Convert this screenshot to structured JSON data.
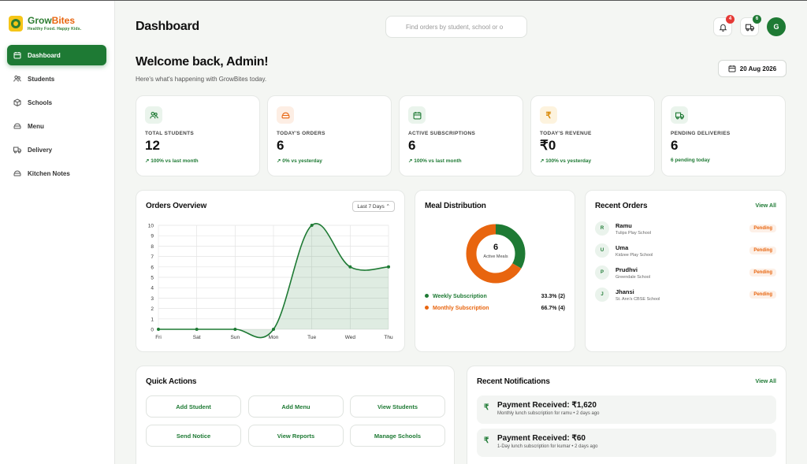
{
  "brand": {
    "name_part1": "Grow",
    "name_part2": "Bites",
    "tagline": "Healthy Food. Happy Kids."
  },
  "sidebar": {
    "items": [
      {
        "label": "Dashboard",
        "icon": "calendar-icon",
        "active": true
      },
      {
        "label": "Students",
        "icon": "users-icon"
      },
      {
        "label": "Schools",
        "icon": "box-icon"
      },
      {
        "label": "Menu",
        "icon": "menu-icon"
      },
      {
        "label": "Delivery",
        "icon": "truck-icon"
      },
      {
        "label": "Kitchen Notes",
        "icon": "notes-icon"
      }
    ]
  },
  "header": {
    "title": "Dashboard",
    "search_placeholder": "Find orders by student, school or o",
    "notifications_count": "4",
    "deliveries_count": "6",
    "avatar_initial": "G"
  },
  "welcome": {
    "title": "Welcome back, Admin!",
    "subtitle": "Here's what's happening with GrowBites today.",
    "date": "20 Aug 2026"
  },
  "stats": [
    {
      "label": "TOTAL STUDENTS",
      "value": "12",
      "trend": "↗ 100% vs last month",
      "icon": "users-icon",
      "bg": "#eaf4ec",
      "color": "#1e7a34"
    },
    {
      "label": "TODAY'S ORDERS",
      "value": "6",
      "trend": "↗ 0% vs yesterday",
      "icon": "menu-icon",
      "bg": "#fdeee4",
      "color": "#e8650f"
    },
    {
      "label": "ACTIVE SUBSCRIPTIONS",
      "value": "6",
      "trend": "↗ 100% vs last month",
      "icon": "calendar-icon",
      "bg": "#eaf4ec",
      "color": "#1e7a34"
    },
    {
      "label": "TODAY'S REVENUE",
      "value": "₹0",
      "trend": "↗ 100% vs yesterday",
      "icon": "rupee-icon",
      "bg": "#fdf3de",
      "color": "#d98a08"
    },
    {
      "label": "PENDING DELIVERIES",
      "value": "6",
      "trend": "6 pending today",
      "icon": "truck-icon",
      "bg": "#eaf4ec",
      "color": "#1e7a34"
    }
  ],
  "orders_overview": {
    "title": "Orders Overview",
    "range": "Last 7 Days"
  },
  "chart_data": {
    "type": "area",
    "title": "Orders Overview",
    "categories": [
      "Fri",
      "Sat",
      "Sun",
      "Mon",
      "Tue",
      "Wed",
      "Thu"
    ],
    "values": [
      0,
      0,
      0,
      0,
      10,
      6,
      6
    ],
    "ylim": [
      0,
      10
    ],
    "yticks": [
      0,
      1,
      2,
      3,
      4,
      5,
      6,
      7,
      8,
      9,
      10
    ],
    "grid": true,
    "color": "#1e7a34"
  },
  "meal_distribution": {
    "title": "Meal Distribution",
    "center_value": "6",
    "center_label": "Active Meals",
    "items": [
      {
        "name": "Weekly Subscription",
        "value": "33.3% (2)",
        "color": "#1e7a34",
        "fraction": 0.333
      },
      {
        "name": "Monthly Subscription",
        "value": "66.7% (4)",
        "color": "#e8650f",
        "fraction": 0.667
      }
    ]
  },
  "recent_orders": {
    "title": "Recent Orders",
    "view_all": "View All",
    "items": [
      {
        "initial": "R",
        "name": "Ramu",
        "school": "Tulips Play School",
        "status": "Pending"
      },
      {
        "initial": "U",
        "name": "Uma",
        "school": "Kidzee Play School",
        "status": "Pending"
      },
      {
        "initial": "P",
        "name": "Prudhvi",
        "school": "Greendale School",
        "status": "Pending"
      },
      {
        "initial": "J",
        "name": "Jhansi",
        "school": "St. Ann's CBSE School",
        "status": "Pending"
      }
    ]
  },
  "quick_actions": {
    "title": "Quick Actions",
    "buttons": [
      "Add Student",
      "Add Menu",
      "View Students",
      "Send Notice",
      "View Reports",
      "Manage Schools"
    ]
  },
  "notifications": {
    "title": "Recent Notifications",
    "view_all": "View All",
    "items": [
      {
        "title": "Payment Received: ₹1,620",
        "subtitle": "Monthly lunch subscription for ramu • 2 days ago"
      },
      {
        "title": "Payment Received: ₹60",
        "subtitle": "1-Day lunch subscription for kumar • 2 days ago"
      }
    ]
  }
}
